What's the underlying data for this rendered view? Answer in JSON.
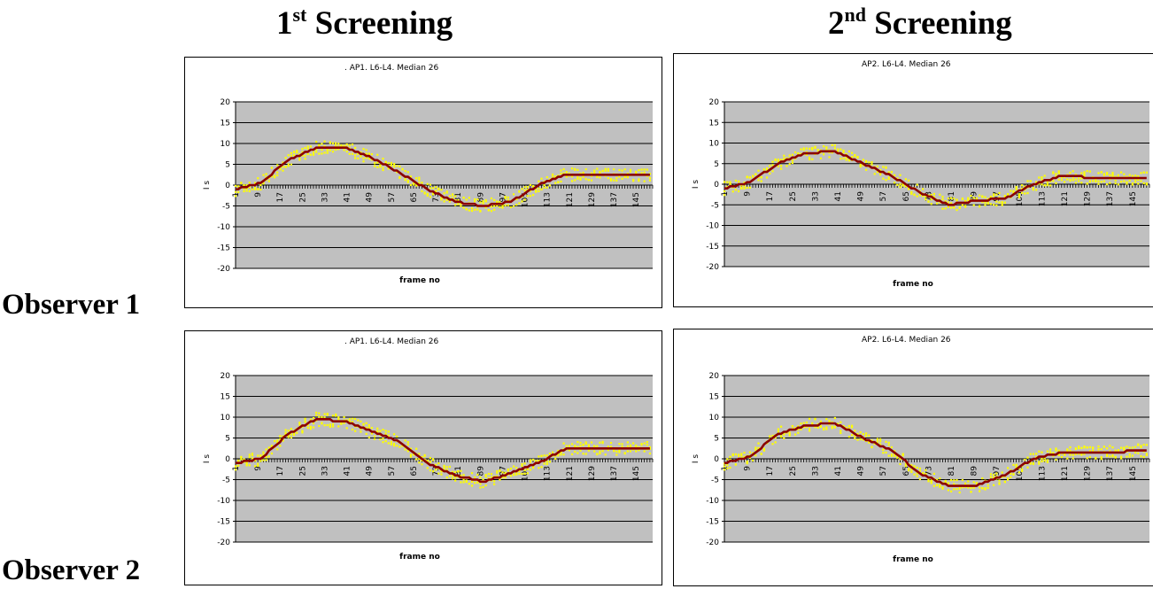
{
  "columns": [
    {
      "number": "1",
      "suffix": "st",
      "label": "Screening"
    },
    {
      "number": "2",
      "suffix": "nd",
      "label": "Screening"
    }
  ],
  "rows": [
    "Observer 1",
    "Observer 2"
  ],
  "colors": {
    "plot_background": "#c0c0c0",
    "median_line": "#8b0000",
    "observation_points": "#ffff00"
  },
  "chart_data": [
    {
      "type": "line",
      "title": ". AP1. L6-L4. Median 26",
      "xlabel": "frame no",
      "ylabel": "I s",
      "ylim": [
        -20,
        20
      ],
      "y_ticks": [
        20,
        15,
        10,
        5,
        0,
        -5,
        -10,
        -15,
        -20
      ],
      "x_tick_labels": [
        "1",
        "9",
        "17",
        "25",
        "33",
        "41",
        "49",
        "57",
        "65",
        "73",
        "81",
        "89",
        "97",
        "105",
        "113",
        "121",
        "129",
        "137",
        "145"
      ],
      "grid": true,
      "series": [
        {
          "x": [
            1,
            10,
            20,
            30,
            40,
            50,
            60,
            70,
            80,
            90,
            100,
            110,
            120,
            135,
            150
          ],
          "values": [
            -1,
            0.5,
            6,
            9,
            9,
            6.5,
            3,
            -1,
            -4,
            -5,
            -4,
            0,
            2.5,
            2.5,
            2.5
          ]
        }
      ]
    },
    {
      "type": "line",
      "title": "AP2. L6-L4. Median 26",
      "xlabel": "frame no",
      "ylabel": "I s",
      "ylim": [
        -20,
        20
      ],
      "y_ticks": [
        20,
        15,
        10,
        5,
        0,
        -5,
        -10,
        -15,
        -20
      ],
      "x_tick_labels": [
        "1",
        "9",
        "17",
        "25",
        "33",
        "41",
        "49",
        "57",
        "65",
        "73",
        "81",
        "89",
        "97",
        "105",
        "113",
        "121",
        "129",
        "137",
        "145"
      ],
      "grid": true,
      "series": [
        {
          "x": [
            1,
            10,
            20,
            30,
            40,
            50,
            60,
            70,
            80,
            90,
            100,
            110,
            120,
            135,
            150
          ],
          "values": [
            -1,
            0.5,
            5,
            7.5,
            8,
            5,
            2,
            -2,
            -5,
            -4,
            -3.5,
            0,
            2,
            1.5,
            1.5
          ]
        }
      ]
    },
    {
      "type": "line",
      "title": ". AP1. L6-L4. Median 26",
      "xlabel": "frame no",
      "ylabel": "I s",
      "ylim": [
        -20,
        20
      ],
      "y_ticks": [
        20,
        15,
        10,
        5,
        0,
        -5,
        -10,
        -15,
        -20
      ],
      "x_tick_labels": [
        "1",
        "9",
        "17",
        "25",
        "33",
        "41",
        "49",
        "57",
        "65",
        "73",
        "81",
        "89",
        "97",
        "105",
        "113",
        "121",
        "129",
        "137",
        "145"
      ],
      "grid": true,
      "series": [
        {
          "x": [
            1,
            10,
            20,
            30,
            40,
            50,
            60,
            70,
            80,
            90,
            100,
            110,
            120,
            135,
            150
          ],
          "values": [
            -1,
            0,
            6,
            9.5,
            9,
            6.5,
            4,
            -1,
            -4,
            -5.5,
            -3.5,
            -1,
            2.5,
            2.5,
            2.5
          ]
        }
      ]
    },
    {
      "type": "line",
      "title": "AP2. L6-L4. Median 26",
      "xlabel": "frame no",
      "ylabel": "I s",
      "ylim": [
        -20,
        20
      ],
      "y_ticks": [
        20,
        15,
        10,
        5,
        0,
        -5,
        -10,
        -15,
        -20
      ],
      "x_tick_labels": [
        "1",
        "9",
        "17",
        "25",
        "33",
        "41",
        "49",
        "57",
        "65",
        "73",
        "81",
        "89",
        "97",
        "105",
        "113",
        "121",
        "129",
        "137",
        "145"
      ],
      "grid": true,
      "series": [
        {
          "x": [
            1,
            10,
            20,
            30,
            40,
            50,
            60,
            70,
            80,
            90,
            100,
            110,
            120,
            135,
            150
          ],
          "values": [
            -1,
            0.5,
            6,
            8,
            8.5,
            5,
            2,
            -3.5,
            -6.5,
            -6.5,
            -4,
            0,
            1.5,
            1.5,
            2
          ]
        }
      ]
    }
  ]
}
